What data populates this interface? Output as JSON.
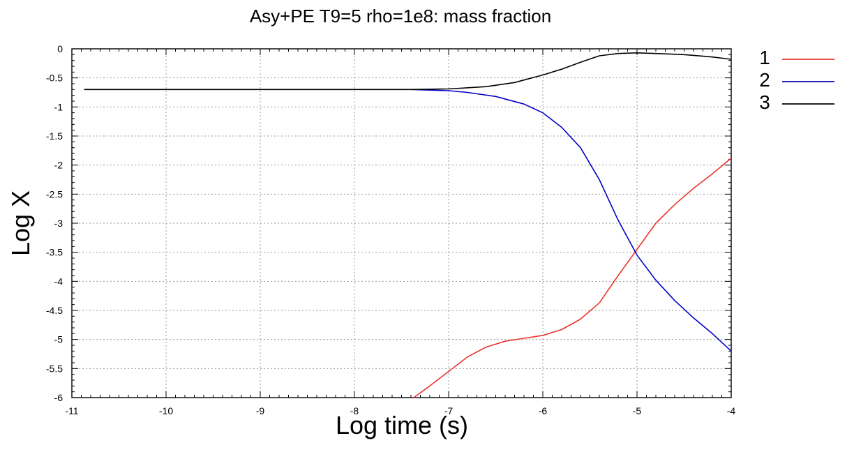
{
  "chart_data": {
    "type": "line",
    "title": "Asy+PE T9=5 rho=1e8: mass fraction",
    "xlabel": "Log time (s)",
    "ylabel": "Log X",
    "xlim": [
      -11,
      -4
    ],
    "ylim": [
      -6,
      0
    ],
    "xticks": [
      -11,
      -10,
      -9,
      -8,
      -7,
      -6,
      -5,
      -4
    ],
    "yticks": [
      0,
      -0.5,
      -1,
      -1.5,
      -2,
      -2.5,
      -3,
      -3.5,
      -4,
      -4.5,
      -5,
      -5.5,
      -6
    ],
    "xtick_labels": [
      "-11",
      "-10",
      "-9",
      "-8",
      "-7",
      "-6",
      "-5",
      "-4"
    ],
    "ytick_labels": [
      "0",
      "-0.5",
      "-1",
      "-1.5",
      "-2",
      "-2.5",
      "-3",
      "-3.5",
      "-4",
      "-4.5",
      "-5",
      "-5.5",
      "-6"
    ],
    "grid": true,
    "legend_position": "outside-right-top",
    "series": [
      {
        "name": "1",
        "color": "#e8352a",
        "points": [
          [
            -7.37,
            -6.0
          ],
          [
            -7.2,
            -5.8
          ],
          [
            -7.0,
            -5.55
          ],
          [
            -6.8,
            -5.3
          ],
          [
            -6.6,
            -5.13
          ],
          [
            -6.4,
            -5.03
          ],
          [
            -6.2,
            -4.98
          ],
          [
            -6.0,
            -4.93
          ],
          [
            -5.8,
            -4.83
          ],
          [
            -5.6,
            -4.65
          ],
          [
            -5.4,
            -4.37
          ],
          [
            -5.2,
            -3.9
          ],
          [
            -5.0,
            -3.45
          ],
          [
            -4.8,
            -3.0
          ],
          [
            -4.6,
            -2.68
          ],
          [
            -4.4,
            -2.4
          ],
          [
            -4.2,
            -2.15
          ],
          [
            -4.0,
            -1.88
          ]
        ]
      },
      {
        "name": "2",
        "color": "#0000c8",
        "points": [
          [
            -7.4,
            -0.7
          ],
          [
            -7.0,
            -0.72
          ],
          [
            -6.8,
            -0.75
          ],
          [
            -6.5,
            -0.82
          ],
          [
            -6.2,
            -0.95
          ],
          [
            -6.0,
            -1.1
          ],
          [
            -5.8,
            -1.35
          ],
          [
            -5.6,
            -1.7
          ],
          [
            -5.4,
            -2.25
          ],
          [
            -5.2,
            -2.95
          ],
          [
            -5.0,
            -3.55
          ],
          [
            -4.8,
            -3.98
          ],
          [
            -4.6,
            -4.33
          ],
          [
            -4.4,
            -4.63
          ],
          [
            -4.2,
            -4.9
          ],
          [
            -4.0,
            -5.2
          ]
        ]
      },
      {
        "name": "3",
        "color": "#000000",
        "points": [
          [
            -10.87,
            -0.7
          ],
          [
            -9.0,
            -0.7
          ],
          [
            -8.0,
            -0.7
          ],
          [
            -7.4,
            -0.7
          ],
          [
            -7.0,
            -0.69
          ],
          [
            -6.6,
            -0.65
          ],
          [
            -6.3,
            -0.58
          ],
          [
            -6.0,
            -0.45
          ],
          [
            -5.8,
            -0.35
          ],
          [
            -5.6,
            -0.23
          ],
          [
            -5.4,
            -0.12
          ],
          [
            -5.2,
            -0.08
          ],
          [
            -5.0,
            -0.07
          ],
          [
            -4.8,
            -0.08
          ],
          [
            -4.5,
            -0.1
          ],
          [
            -4.2,
            -0.14
          ],
          [
            -4.0,
            -0.18
          ]
        ]
      }
    ]
  }
}
